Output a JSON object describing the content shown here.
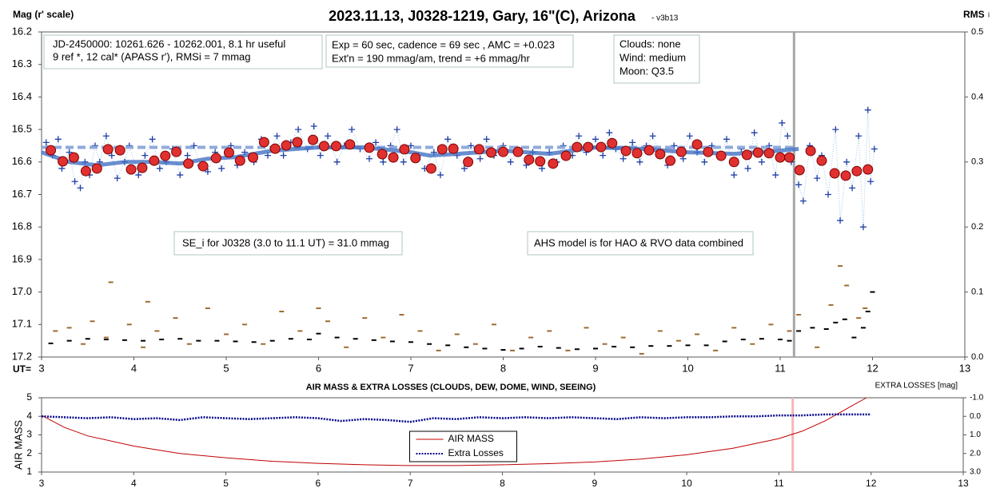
{
  "chart_data": [
    {
      "type": "scatter",
      "title": "2023.11.13, J0328-1219, Gary, 16\"(C), Arizona",
      "subtitle": "- v3b13",
      "ylabel": "Mag (r' scale)",
      "y2label": "RMS",
      "y2label_sub": "i",
      "xlabel": "UT=",
      "xlim": [
        3,
        13
      ],
      "xticks": [
        3,
        4,
        5,
        6,
        7,
        8,
        9,
        10,
        11,
        12,
        13
      ],
      "ylim": [
        17.2,
        16.2
      ],
      "yticks": [
        16.2,
        16.3,
        16.4,
        16.5,
        16.6,
        16.7,
        16.8,
        16.9,
        {
          "value": 17,
          "label": "17.0"
        },
        17.1,
        17.2
      ],
      "y2lim": [
        0,
        0.5
      ],
      "y2ticks": [
        {
          "value": 0,
          "label": "0.0"
        },
        0.1,
        0.2,
        0.3,
        0.4,
        0.5
      ],
      "vline": 11.15,
      "vline_color": "#a6a6a6",
      "annotations": [
        {
          "lines": [
            "JD-2450000: 10261.626 - 10262.001, 8.1 hr useful",
            "9 ref *, 12 cal*  (APASS r'), RMSi = 7 mmag"
          ]
        },
        {
          "lines": [
            "Exp = 60 sec, cadence = 69 sec , AMC = +0.023",
            "Ext'n = 190 mmag/am, trend = +6 mmag/hr"
          ]
        },
        {
          "lines": [
            "Clouds: none",
            "Wind:  medium",
            "Moon:  Q3.5"
          ]
        },
        {
          "lines": [
            "SE_i for J0328 (3.0 to 11.1 UT) = 31.0 mmag"
          ]
        },
        {
          "lines": [
            "AHS model is for HAO & RVO data combined"
          ]
        }
      ],
      "series": [
        {
          "style": "dash",
          "color": "#9c6b30",
          "axis": "y2",
          "x": [
            3.15,
            3.3,
            3.45,
            3.55,
            3.7,
            3.75,
            3.95,
            4.1,
            4.15,
            4.25,
            4.45,
            4.6,
            4.8,
            5.0,
            5.2,
            5.4,
            5.6,
            5.8,
            6.0,
            6.1,
            6.3,
            6.5,
            6.7,
            6.9,
            7.1,
            7.3,
            7.5,
            7.7,
            7.9,
            8.1,
            8.3,
            8.5,
            8.7,
            8.9,
            9.1,
            9.3,
            9.5,
            9.7,
            9.9,
            10.1,
            10.3,
            10.5,
            10.7,
            10.9,
            11.1,
            11.2,
            11.4,
            11.55,
            11.65,
            11.72,
            11.85,
            11.92
          ],
          "values": [
            0.04,
            0.045,
            0.02,
            0.055,
            0.03,
            0.115,
            0.05,
            0.015,
            0.085,
            0.04,
            0.06,
            0.02,
            0.075,
            0.035,
            0.05,
            0.02,
            0.07,
            0.04,
            0.075,
            0.055,
            0.015,
            0.06,
            0.03,
            0.065,
            0.04,
            0.01,
            0.035,
            0.02,
            0.05,
            0.01,
            0.03,
            0.04,
            0.01,
            0.045,
            0.02,
            0.03,
            0.005,
            0.04,
            0.025,
            0.035,
            0.01,
            0.045,
            0.02,
            0.05,
            0.04,
            0.065,
            0.015,
            0.08,
            0.14,
            0.11,
            0.06,
            0.075
          ]
        },
        {
          "style": "dash",
          "color": "#000000",
          "axis": "y2",
          "x": [
            3.1,
            3.3,
            3.5,
            3.7,
            3.9,
            4.1,
            4.3,
            4.5,
            4.7,
            4.9,
            5.1,
            5.3,
            5.5,
            5.7,
            5.9,
            6.0,
            6.2,
            6.4,
            6.6,
            6.8,
            7.0,
            7.2,
            7.4,
            7.6,
            7.8,
            8.0,
            8.2,
            8.4,
            8.6,
            8.8,
            9.0,
            9.2,
            9.4,
            9.6,
            9.8,
            10.0,
            10.2,
            10.4,
            10.6,
            10.8,
            11.0,
            11.1,
            11.2,
            11.35,
            11.5,
            11.6,
            11.7,
            11.8,
            11.9,
            11.95,
            12.0
          ],
          "values": [
            0.021,
            0.025,
            0.028,
            0.027,
            0.026,
            0.025,
            0.027,
            0.028,
            0.025,
            0.025,
            0.024,
            0.023,
            0.025,
            0.028,
            0.027,
            0.036,
            0.03,
            0.028,
            0.026,
            0.024,
            0.023,
            0.02,
            0.018,
            0.015,
            0.013,
            0.011,
            0.013,
            0.016,
            0.014,
            0.012,
            0.013,
            0.016,
            0.015,
            0.017,
            0.017,
            0.018,
            0.018,
            0.024,
            0.027,
            0.028,
            0.027,
            0.025,
            0.04,
            0.045,
            0.043,
            0.053,
            0.058,
            0.03,
            0.045,
            0.07,
            0.1
          ]
        },
        {
          "style": "cross",
          "color": "#1f3fa8",
          "x": [
            3.05,
            3.12,
            3.18,
            3.22,
            3.3,
            3.36,
            3.42,
            3.47,
            3.52,
            3.58,
            3.63,
            3.7,
            3.76,
            3.82,
            3.9,
            3.95,
            4.05,
            4.12,
            4.2,
            4.28,
            4.35,
            4.42,
            4.5,
            4.58,
            4.65,
            4.72,
            4.8,
            4.88,
            4.95,
            5.05,
            5.12,
            5.2,
            5.3,
            5.38,
            5.45,
            5.55,
            5.62,
            5.7,
            5.78,
            5.88,
            5.95,
            6.02,
            6.1,
            6.2,
            6.28,
            6.36,
            6.45,
            6.55,
            6.62,
            6.7,
            6.78,
            6.85,
            6.92,
            7.0,
            7.08,
            7.15,
            7.25,
            7.32,
            7.4,
            7.5,
            7.58,
            7.65,
            7.75,
            7.82,
            7.9,
            8.0,
            8.08,
            8.15,
            8.25,
            8.32,
            8.42,
            8.5,
            8.58,
            8.65,
            8.75,
            8.82,
            8.9,
            9.0,
            9.08,
            9.15,
            9.22,
            9.3,
            9.4,
            9.48,
            9.55,
            9.62,
            9.7,
            9.78,
            9.85,
            9.95,
            10.02,
            10.1,
            10.18,
            10.26,
            10.35,
            10.42,
            10.5,
            10.58,
            10.65,
            10.72,
            10.8,
            10.88,
            10.95,
            11.02,
            11.08,
            11.12,
            11.2,
            11.25,
            11.32,
            11.4,
            11.45,
            11.52,
            11.6,
            11.65,
            11.72,
            11.78,
            11.85,
            11.9,
            11.95,
            11.98,
            12.02
          ],
          "values": [
            16.54,
            16.58,
            16.53,
            16.62,
            16.57,
            16.66,
            16.68,
            16.6,
            16.64,
            16.55,
            16.6,
            16.52,
            16.58,
            16.65,
            16.6,
            16.55,
            16.64,
            16.58,
            16.53,
            16.62,
            16.6,
            16.56,
            16.64,
            16.58,
            16.55,
            16.61,
            16.63,
            16.57,
            16.62,
            16.55,
            16.61,
            16.57,
            16.6,
            16.53,
            16.58,
            16.52,
            16.58,
            16.54,
            16.5,
            16.56,
            16.49,
            16.58,
            16.52,
            16.6,
            16.55,
            16.5,
            16.56,
            16.59,
            16.54,
            16.6,
            16.55,
            16.5,
            16.6,
            16.55,
            16.58,
            16.62,
            16.57,
            16.64,
            16.53,
            16.58,
            16.62,
            16.55,
            16.59,
            16.53,
            16.58,
            16.55,
            16.6,
            16.56,
            16.61,
            16.57,
            16.62,
            16.57,
            16.6,
            16.55,
            16.58,
            16.52,
            16.57,
            16.53,
            16.58,
            16.51,
            16.56,
            16.59,
            16.54,
            16.6,
            16.55,
            16.52,
            16.58,
            16.61,
            16.55,
            16.59,
            16.52,
            16.57,
            16.6,
            16.55,
            16.58,
            16.53,
            16.64,
            16.56,
            16.62,
            16.51,
            16.6,
            16.55,
            16.64,
            16.48,
            16.52,
            16.6,
            16.67,
            16.72,
            16.55,
            16.65,
            16.58,
            16.7,
            16.5,
            16.78,
            16.6,
            16.68,
            16.52,
            16.8,
            16.44,
            16.66,
            16.56
          ]
        },
        {
          "style": "dashed-line",
          "color": "#8faadc",
          "x": [
            3,
            11.15
          ],
          "values": [
            16.555,
            16.555
          ]
        },
        {
          "style": "thick-line",
          "color": "#4472c4",
          "x": [
            3.0,
            3.3,
            3.6,
            3.9,
            4.2,
            4.5,
            4.8,
            5.1,
            5.5,
            6.0,
            6.5,
            7.0,
            7.2,
            7.5,
            8.0,
            8.5,
            9.0,
            9.5,
            10.0,
            10.5,
            11.0,
            11.2
          ],
          "values": [
            16.57,
            16.6,
            16.61,
            16.6,
            16.6,
            16.605,
            16.59,
            16.585,
            16.565,
            16.555,
            16.555,
            16.57,
            16.58,
            16.575,
            16.565,
            16.575,
            16.555,
            16.56,
            16.57,
            16.575,
            16.565,
            16.56
          ]
        },
        {
          "style": "circle",
          "color": "#e03030",
          "x": [
            3.1,
            3.23,
            3.35,
            3.48,
            3.6,
            3.72,
            3.85,
            3.97,
            4.09,
            4.22,
            4.34,
            4.46,
            4.59,
            4.75,
            4.89,
            5.03,
            5.15,
            5.29,
            5.41,
            5.53,
            5.65,
            5.77,
            5.94,
            6.06,
            6.19,
            6.34,
            6.55,
            6.69,
            6.81,
            6.93,
            7.05,
            7.22,
            7.34,
            7.46,
            7.62,
            7.74,
            7.87,
            8.0,
            8.16,
            8.28,
            8.4,
            8.54,
            8.68,
            8.8,
            8.92,
            9.06,
            9.18,
            9.33,
            9.45,
            9.58,
            9.7,
            9.81,
            9.93,
            10.1,
            10.22,
            10.36,
            10.5,
            10.64,
            10.76,
            10.88,
            11.0,
            11.1,
            11.21,
            11.33,
            11.45,
            11.59,
            11.71,
            11.83,
            11.95
          ],
          "values": [
            16.564,
            16.598,
            16.586,
            16.628,
            16.62,
            16.561,
            16.564,
            16.623,
            16.618,
            16.596,
            16.581,
            16.569,
            16.605,
            16.613,
            16.588,
            16.571,
            16.596,
            16.586,
            16.539,
            16.559,
            16.549,
            16.539,
            16.532,
            16.551,
            16.551,
            16.546,
            16.556,
            16.576,
            16.586,
            16.561,
            16.588,
            16.62,
            16.561,
            16.559,
            16.6,
            16.561,
            16.571,
            16.569,
            16.569,
            16.593,
            16.598,
            16.605,
            16.581,
            16.554,
            16.554,
            16.554,
            16.542,
            16.566,
            16.573,
            16.564,
            16.576,
            16.596,
            16.569,
            16.546,
            16.569,
            16.581,
            16.6,
            16.578,
            16.571,
            16.573,
            16.586,
            16.586,
            16.625,
            16.566,
            16.596,
            16.635,
            16.642,
            16.628,
            16.623
          ]
        }
      ]
    },
    {
      "type": "line",
      "title": "AIR MASS & EXTRA LOSSES (CLOUDS, DEW, DOME, WIND, SEEING)",
      "ylabel": "AIR MASS",
      "y2label": "EXTRA LOSSES [mag]",
      "xlim": [
        3,
        13
      ],
      "xticks": [
        3,
        4,
        5,
        6,
        7,
        8,
        9,
        10,
        11,
        12,
        13
      ],
      "ylim": [
        1,
        5
      ],
      "yticks": [
        1,
        2,
        3,
        4,
        5
      ],
      "y2lim": [
        3,
        -1
      ],
      "y2ticks": [
        {
          "value": -1,
          "label": "-1.0"
        },
        {
          "value": 0,
          "label": "0.0"
        },
        {
          "value": 1,
          "label": "1.0"
        },
        {
          "value": 2,
          "label": "2.0"
        },
        {
          "value": 3,
          "label": "3.0"
        }
      ],
      "vline": 11.15,
      "vline_color": "#f4b6b6",
      "legend": "lower center",
      "series": [
        {
          "name": "AIR MASS",
          "style": "line",
          "color": "#c00000",
          "x": [
            3.0,
            3.25,
            3.5,
            4.0,
            4.5,
            5.0,
            5.5,
            6.0,
            6.5,
            7.0,
            7.5,
            8.0,
            8.5,
            9.0,
            9.5,
            10.0,
            10.5,
            11.0,
            11.25,
            11.5,
            11.75,
            11.95
          ],
          "values": [
            4.05,
            3.4,
            2.95,
            2.4,
            2.0,
            1.77,
            1.58,
            1.47,
            1.39,
            1.35,
            1.35,
            1.39,
            1.45,
            1.54,
            1.7,
            1.93,
            2.28,
            2.8,
            3.2,
            3.75,
            4.45,
            5.0
          ]
        },
        {
          "name": "Extra Losses",
          "style": "dash-line",
          "color": "#00008b",
          "axis": "y2",
          "x": [
            3.0,
            3.25,
            3.5,
            3.75,
            4.0,
            4.25,
            4.5,
            4.75,
            5.0,
            5.25,
            5.5,
            5.75,
            6.0,
            6.25,
            6.5,
            6.75,
            7.0,
            7.25,
            7.5,
            7.75,
            8.0,
            8.25,
            8.5,
            8.75,
            9.0,
            9.25,
            9.5,
            9.75,
            10.0,
            10.25,
            10.5,
            10.75,
            11.0,
            11.25,
            11.5,
            11.75,
            12.0
          ],
          "values": [
            0.0,
            0.05,
            0.1,
            0.05,
            0.15,
            0.1,
            0.2,
            0.05,
            0.1,
            0.15,
            0.1,
            0.05,
            0.1,
            0.25,
            0.15,
            0.2,
            0.3,
            0.1,
            0.15,
            0.05,
            0.1,
            0.05,
            0.1,
            0.05,
            0.1,
            0.15,
            0.05,
            0.1,
            0.05,
            0.05,
            0.0,
            0.0,
            -0.05,
            -0.05,
            -0.1,
            -0.1,
            -0.1
          ]
        }
      ]
    }
  ]
}
